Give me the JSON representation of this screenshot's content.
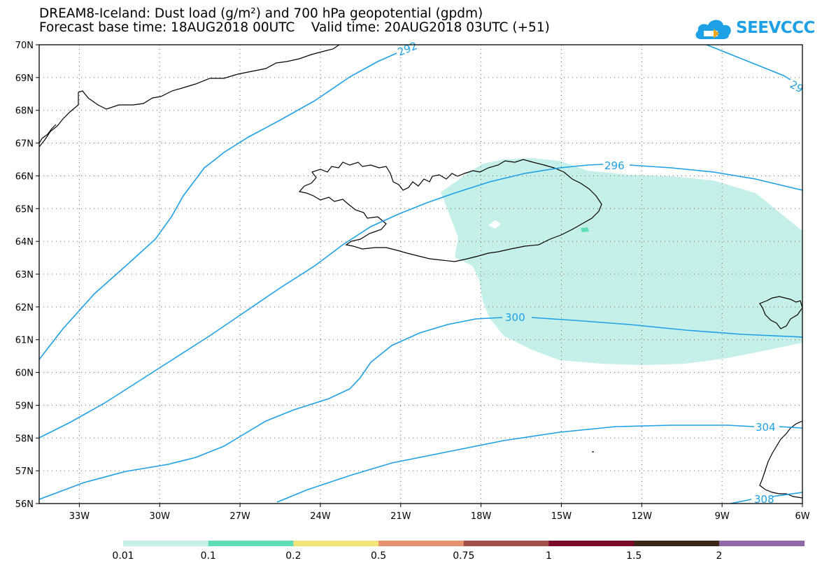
{
  "title": {
    "line1": "DREAM8-Iceland: Dust load (g/m²) and 700 hPa geopotential (gpdm)",
    "line2": "Forecast base time: 18AUG2018 00UTC    Valid time: 20AUG2018 03UTC (+51)"
  },
  "logo": {
    "text": "SEEVCCC",
    "icon": "cloud-logo-icon"
  },
  "map": {
    "lat_labels": [
      "70N",
      "69N",
      "68N",
      "67N",
      "66N",
      "65N",
      "64N",
      "63N",
      "62N",
      "61N",
      "60N",
      "59N",
      "58N",
      "57N",
      "56N"
    ],
    "lon_labels": [
      "33W",
      "30W",
      "27W",
      "24W",
      "21W",
      "18W",
      "15W",
      "12W",
      "9W",
      "6W"
    ],
    "lat_range": [
      56,
      70
    ],
    "lon_range": [
      -34.5,
      -6
    ],
    "grid": "dotted",
    "coastline_color": "#000000",
    "contour_color": "#1ea0e6",
    "dust_fill_color": "#c5f0ea",
    "contour_labels": [
      "292",
      "29",
      "296",
      "300",
      "304",
      "308"
    ]
  },
  "legend": {
    "colors": [
      "#c5f0ea",
      "#5fdcb8",
      "#f3e37a",
      "#e7926e",
      "#a2504a",
      "#7c0a2a",
      "#3c2618",
      "#8f6aa5"
    ],
    "labels": [
      "0.01",
      "0.1",
      "0.2",
      "0.5",
      "0.75",
      "1",
      "1.5",
      "2"
    ]
  }
}
